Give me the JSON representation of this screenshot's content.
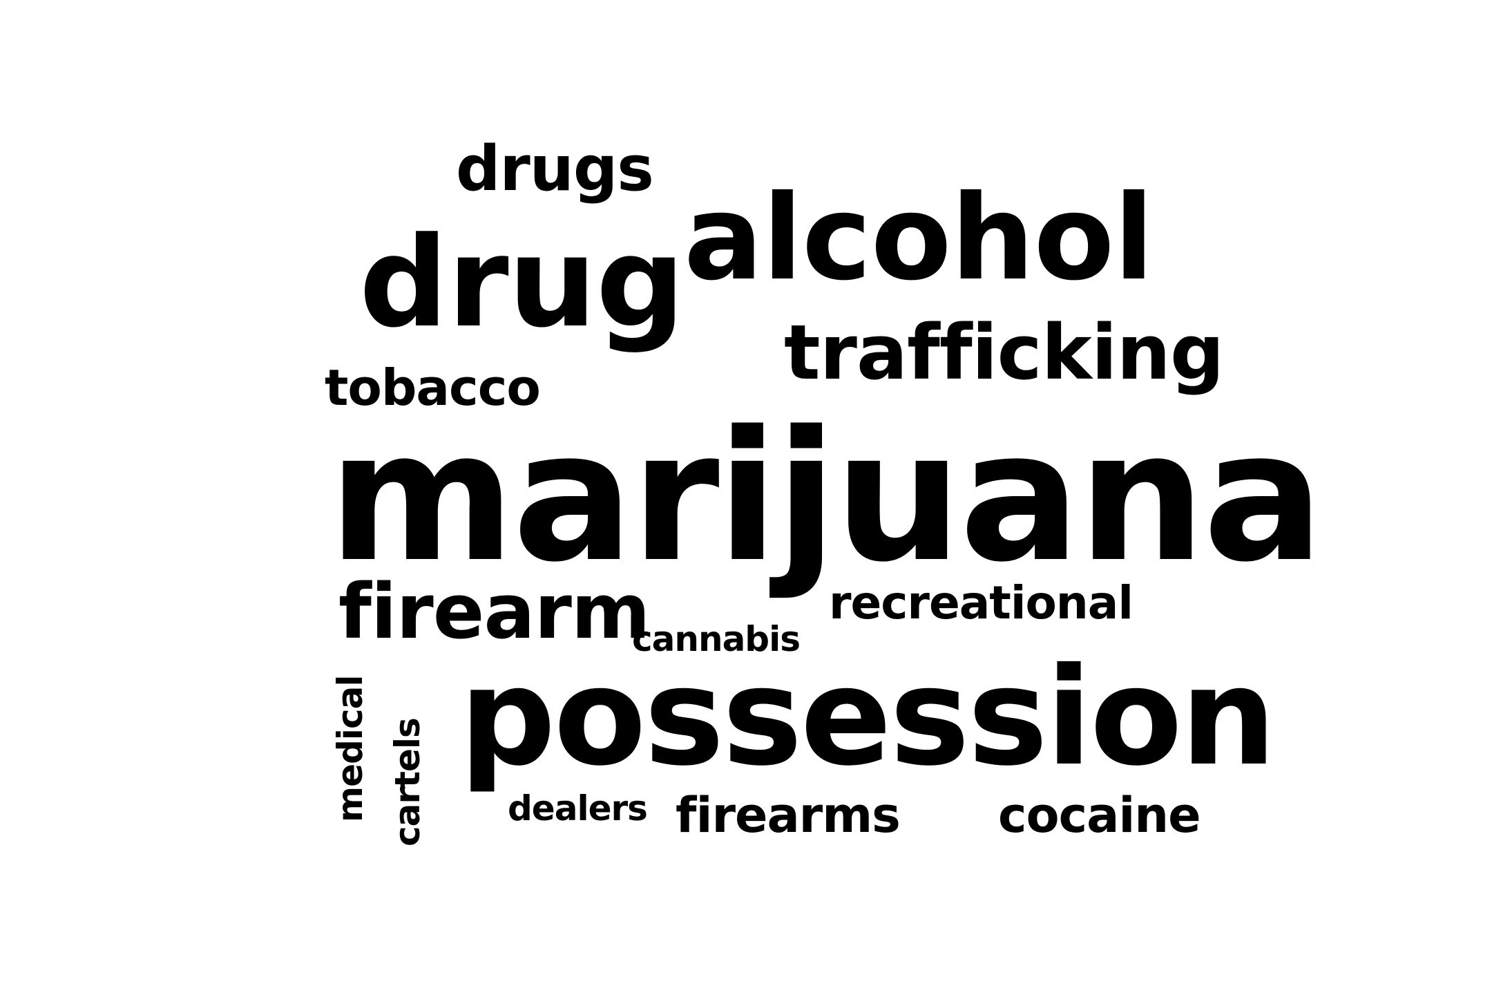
{
  "word_cloud": {
    "words": [
      {
        "text": "marijuana",
        "orientation": "horizontal"
      },
      {
        "text": "possession",
        "orientation": "horizontal"
      },
      {
        "text": "drug",
        "orientation": "horizontal"
      },
      {
        "text": "alcohol",
        "orientation": "horizontal"
      },
      {
        "text": "trafficking",
        "orientation": "horizontal"
      },
      {
        "text": "firearm",
        "orientation": "horizontal"
      },
      {
        "text": "drugs",
        "orientation": "horizontal"
      },
      {
        "text": "tobacco",
        "orientation": "horizontal"
      },
      {
        "text": "recreational",
        "orientation": "horizontal"
      },
      {
        "text": "firearms",
        "orientation": "horizontal"
      },
      {
        "text": "cocaine",
        "orientation": "horizontal"
      },
      {
        "text": "cannabis",
        "orientation": "horizontal"
      },
      {
        "text": "dealers",
        "orientation": "horizontal"
      },
      {
        "text": "medical",
        "orientation": "vertical"
      },
      {
        "text": "cartels",
        "orientation": "vertical"
      }
    ],
    "text_color": "#000000",
    "background_color": "#ffffff"
  }
}
